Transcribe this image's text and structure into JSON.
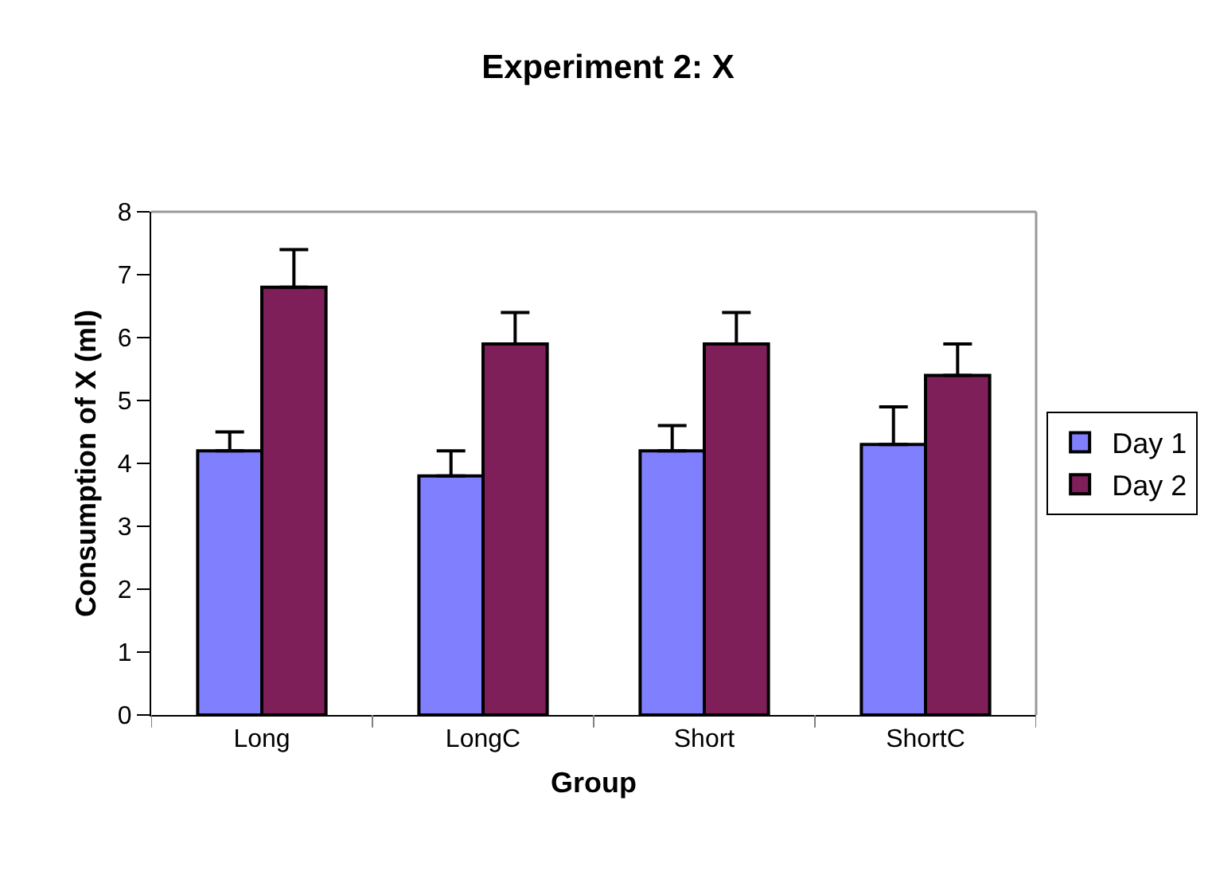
{
  "chart_data": {
    "type": "bar",
    "title": "Experiment 2: X",
    "xlabel": "Group",
    "ylabel": "Consumption of X (ml)",
    "categories": [
      "Long",
      "LongC",
      "Short",
      "ShortC"
    ],
    "series": [
      {
        "name": "Day 1",
        "color": "#8080ff",
        "values": [
          4.2,
          3.8,
          4.2,
          4.3
        ],
        "errors": [
          [
            4.2,
            4.5
          ],
          [
            3.8,
            4.2
          ],
          [
            4.2,
            4.6
          ],
          [
            4.3,
            4.9
          ]
        ]
      },
      {
        "name": "Day 2",
        "color": "#7f1f5a",
        "values": [
          6.8,
          5.9,
          5.9,
          5.4
        ],
        "errors": [
          [
            6.8,
            7.4
          ],
          [
            5.9,
            6.4
          ],
          [
            5.9,
            6.4
          ],
          [
            5.4,
            5.9
          ]
        ]
      }
    ],
    "ylim": [
      0,
      8
    ],
    "yticks": [
      0,
      1,
      2,
      3,
      4,
      5,
      6,
      7,
      8
    ],
    "grid": false,
    "legend": "right"
  }
}
